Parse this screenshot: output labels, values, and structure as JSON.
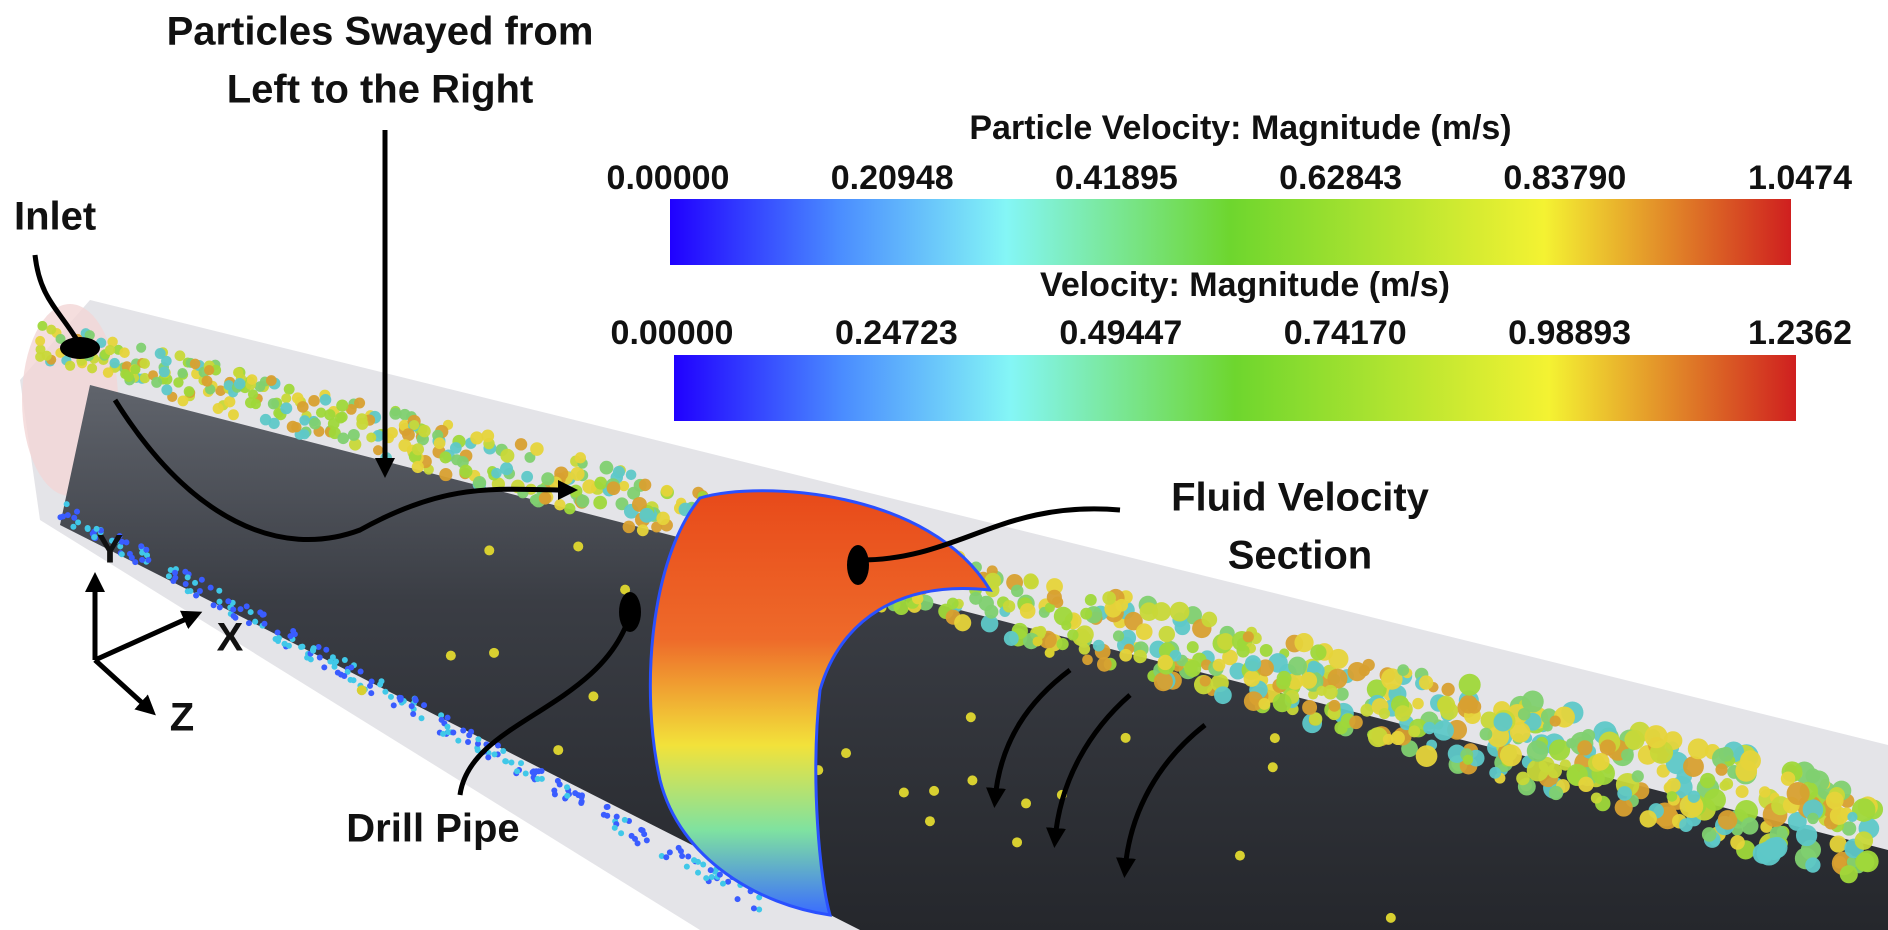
{
  "annotations": {
    "particles_swayed": [
      "Particles Swayed from",
      "Left to the Right"
    ],
    "inlet": "Inlet",
    "fluid_velocity_section": [
      "Fluid Velocity",
      "Section"
    ],
    "drill_pipe": "Drill Pipe"
  },
  "axes": {
    "y": "Y",
    "x": "X",
    "z": "Z"
  },
  "colorbars": [
    {
      "title": "Particle Velocity: Magnitude (m/s)",
      "ticks": [
        "0.00000",
        "0.20948",
        "0.41895",
        "0.62843",
        "0.83790",
        "1.0474"
      ]
    },
    {
      "title": "Velocity: Magnitude (m/s)",
      "ticks": [
        "0.00000",
        "0.24723",
        "0.49447",
        "0.74170",
        "0.98893",
        "1.2362"
      ]
    }
  ]
}
